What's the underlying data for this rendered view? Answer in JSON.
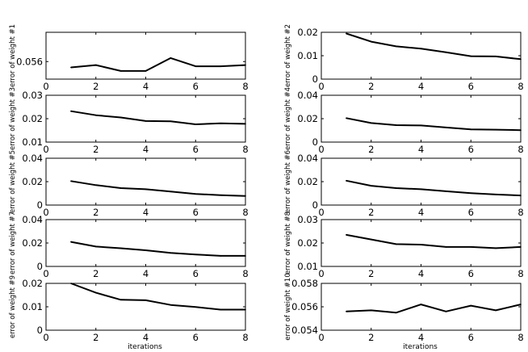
{
  "chart_data": [
    {
      "type": "line",
      "ylabel": "error of weight  #1",
      "xlabel": "",
      "xlim": [
        0,
        8
      ],
      "xticks": [
        0,
        2,
        4,
        6,
        8
      ],
      "ylim": [
        0.0545,
        0.0585
      ],
      "yticks": [
        0.056
      ],
      "ytick_labels": [
        "0.056"
      ],
      "x": [
        1,
        2,
        3,
        4,
        5,
        6,
        7,
        8
      ],
      "series": [
        {
          "values": [
            0.0555,
            0.0557,
            0.0552,
            0.0552,
            0.0563,
            0.0556,
            0.0556,
            0.0557
          ]
        }
      ]
    },
    {
      "type": "line",
      "ylabel": "error of weight  #2",
      "xlabel": "",
      "xlim": [
        0,
        8
      ],
      "xticks": [
        0,
        2,
        4,
        6,
        8
      ],
      "ylim": [
        0,
        0.02
      ],
      "yticks": [
        0,
        0.01,
        0.02
      ],
      "ytick_labels": [
        "0",
        "0.01",
        "0.02"
      ],
      "x": [
        1,
        2,
        3,
        4,
        5,
        6,
        7,
        8
      ],
      "series": [
        {
          "values": [
            0.0195,
            0.016,
            0.014,
            0.013,
            0.0115,
            0.0098,
            0.0097,
            0.0085
          ]
        }
      ]
    },
    {
      "type": "line",
      "ylabel": "error of weight  #3",
      "xlabel": "",
      "xlim": [
        0,
        8
      ],
      "xticks": [
        0,
        2,
        4,
        6,
        8
      ],
      "ylim": [
        0.01,
        0.03
      ],
      "yticks": [
        0.01,
        0.02,
        0.03
      ],
      "ytick_labels": [
        "0.01",
        "0.02",
        "0.03"
      ],
      "x": [
        1,
        2,
        3,
        4,
        5,
        6,
        7,
        8
      ],
      "series": [
        {
          "values": [
            0.0232,
            0.0215,
            0.0205,
            0.019,
            0.0189,
            0.0176,
            0.018,
            0.0178
          ]
        }
      ]
    },
    {
      "type": "line",
      "ylabel": "error of weight  #4",
      "xlabel": "",
      "xlim": [
        0,
        8
      ],
      "xticks": [
        0,
        2,
        4,
        6,
        8
      ],
      "ylim": [
        0,
        0.04
      ],
      "yticks": [
        0,
        0.02,
        0.04
      ],
      "ytick_labels": [
        "0",
        "0.02",
        "0.04"
      ],
      "x": [
        1,
        2,
        3,
        4,
        5,
        6,
        7,
        8
      ],
      "series": [
        {
          "values": [
            0.0205,
            0.0163,
            0.0145,
            0.0142,
            0.0125,
            0.0108,
            0.0106,
            0.0102
          ]
        }
      ]
    },
    {
      "type": "line",
      "ylabel": "error of weight  #5",
      "xlabel": "",
      "xlim": [
        0,
        8
      ],
      "xticks": [
        0,
        2,
        4,
        6,
        8
      ],
      "ylim": [
        0,
        0.04
      ],
      "yticks": [
        0,
        0.02,
        0.04
      ],
      "ytick_labels": [
        "0",
        "0.02",
        "0.04"
      ],
      "x": [
        1,
        2,
        3,
        4,
        5,
        6,
        7,
        8
      ],
      "series": [
        {
          "values": [
            0.0205,
            0.017,
            0.0145,
            0.0135,
            0.0115,
            0.0095,
            0.0085,
            0.0078
          ]
        }
      ]
    },
    {
      "type": "line",
      "ylabel": "error of weight  #6",
      "xlabel": "",
      "xlim": [
        0,
        8
      ],
      "xticks": [
        0,
        2,
        4,
        6,
        8
      ],
      "ylim": [
        0,
        0.04
      ],
      "yticks": [
        0,
        0.02,
        0.04
      ],
      "ytick_labels": [
        "0",
        "0.02",
        "0.04"
      ],
      "x": [
        1,
        2,
        3,
        4,
        5,
        6,
        7,
        8
      ],
      "series": [
        {
          "values": [
            0.0208,
            0.0165,
            0.0145,
            0.0135,
            0.0118,
            0.0102,
            0.009,
            0.0082
          ]
        }
      ]
    },
    {
      "type": "line",
      "ylabel": "error of weight  #7",
      "xlabel": "",
      "xlim": [
        0,
        8
      ],
      "xticks": [
        0,
        2,
        4,
        6,
        8
      ],
      "ylim": [
        0,
        0.04
      ],
      "yticks": [
        0,
        0.02,
        0.04
      ],
      "ytick_labels": [
        "0",
        "0.02",
        "0.04"
      ],
      "x": [
        1,
        2,
        3,
        4,
        5,
        6,
        7,
        8
      ],
      "series": [
        {
          "values": [
            0.021,
            0.017,
            0.0155,
            0.0138,
            0.0115,
            0.0102,
            0.009,
            0.009
          ]
        }
      ]
    },
    {
      "type": "line",
      "ylabel": "error of weight  #8",
      "xlabel": "",
      "xlim": [
        0,
        8
      ],
      "xticks": [
        0,
        2,
        4,
        6,
        8
      ],
      "ylim": [
        0.01,
        0.03
      ],
      "yticks": [
        0.01,
        0.02,
        0.03
      ],
      "ytick_labels": [
        "0.01",
        "0.02",
        "0.03"
      ],
      "x": [
        1,
        2,
        3,
        4,
        5,
        6,
        7,
        8
      ],
      "series": [
        {
          "values": [
            0.0235,
            0.0215,
            0.0195,
            0.0193,
            0.0183,
            0.0183,
            0.0178,
            0.0183
          ]
        }
      ]
    },
    {
      "type": "line",
      "ylabel": "error of weight  #9",
      "xlabel": "iterations",
      "xlim": [
        0,
        8
      ],
      "xticks": [
        0,
        2,
        4,
        6,
        8
      ],
      "ylim": [
        0,
        0.02
      ],
      "yticks": [
        0,
        0.01,
        0.02
      ],
      "ytick_labels": [
        "0",
        "0.01",
        "0.02"
      ],
      "x": [
        1,
        2,
        3,
        4,
        5,
        6,
        7,
        8
      ],
      "series": [
        {
          "values": [
            0.0202,
            0.016,
            0.013,
            0.0128,
            0.0108,
            0.0099,
            0.0088,
            0.0088
          ]
        }
      ]
    },
    {
      "type": "line",
      "ylabel": "error of weight  #10",
      "xlabel": "iterations",
      "xlim": [
        0,
        8
      ],
      "xticks": [
        0,
        2,
        4,
        6,
        8
      ],
      "ylim": [
        0.054,
        0.058
      ],
      "yticks": [
        0.054,
        0.056,
        0.058
      ],
      "ytick_labels": [
        "0.054",
        "0.056",
        "0.058"
      ],
      "x": [
        1,
        2,
        3,
        4,
        5,
        6,
        7,
        8
      ],
      "series": [
        {
          "values": [
            0.0556,
            0.0557,
            0.0555,
            0.0562,
            0.0556,
            0.0561,
            0.0557,
            0.0562
          ]
        }
      ]
    }
  ]
}
